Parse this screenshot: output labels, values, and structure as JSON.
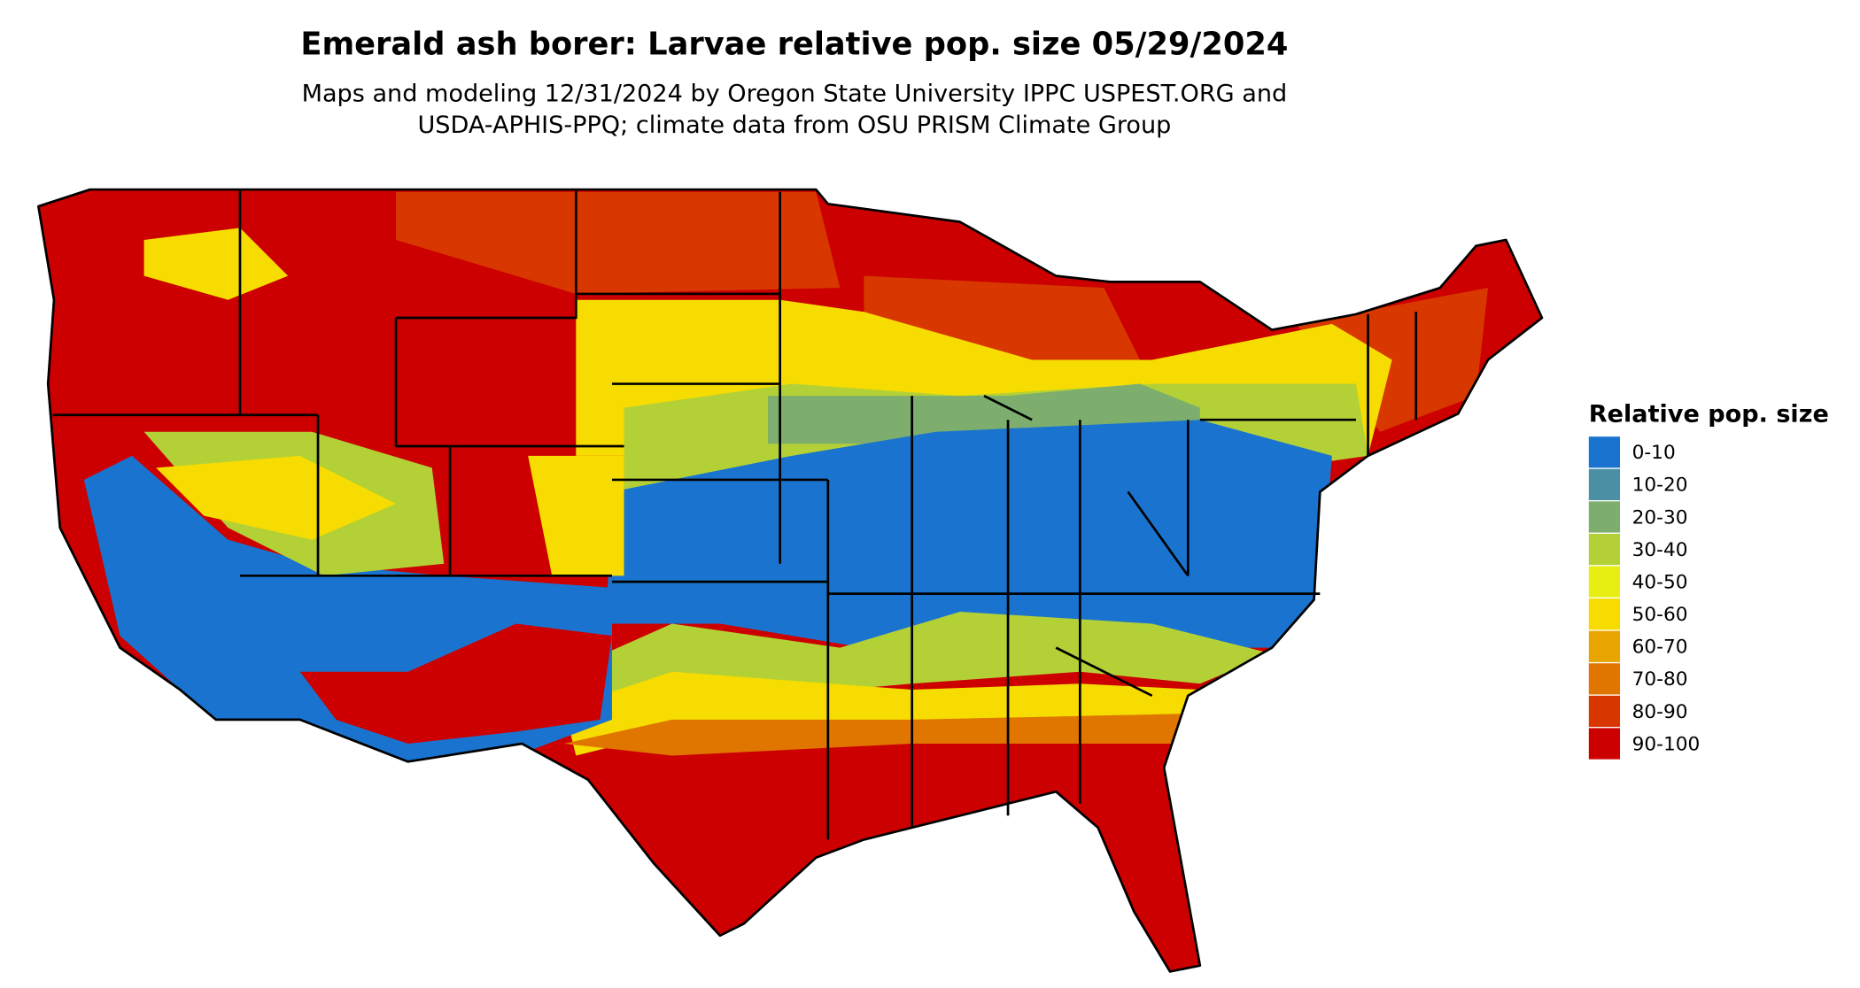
{
  "title": "Emerald ash borer: Larvae relative pop. size 05/29/2024",
  "subtitle": [
    "Maps and modeling 12/31/2024 by Oregon State University IPPC USPEST.ORG and",
    "USDA-APHIS-PPQ; climate data from OSU PRISM Climate Group"
  ],
  "legend": {
    "title": "Relative pop. size",
    "items": [
      {
        "label": "0-10",
        "color": "#1a74cf"
      },
      {
        "label": "10-20",
        "color": "#4a8fa3"
      },
      {
        "label": "20-30",
        "color": "#7dae6e"
      },
      {
        "label": "30-40",
        "color": "#b3d136"
      },
      {
        "label": "40-50",
        "color": "#e6ee12"
      },
      {
        "label": "50-60",
        "color": "#f6dc00"
      },
      {
        "label": "60-70",
        "color": "#e8a500"
      },
      {
        "label": "70-80",
        "color": "#e07500"
      },
      {
        "label": "80-90",
        "color": "#d83800"
      },
      {
        "label": "90-100",
        "color": "#cc0000"
      }
    ]
  }
}
